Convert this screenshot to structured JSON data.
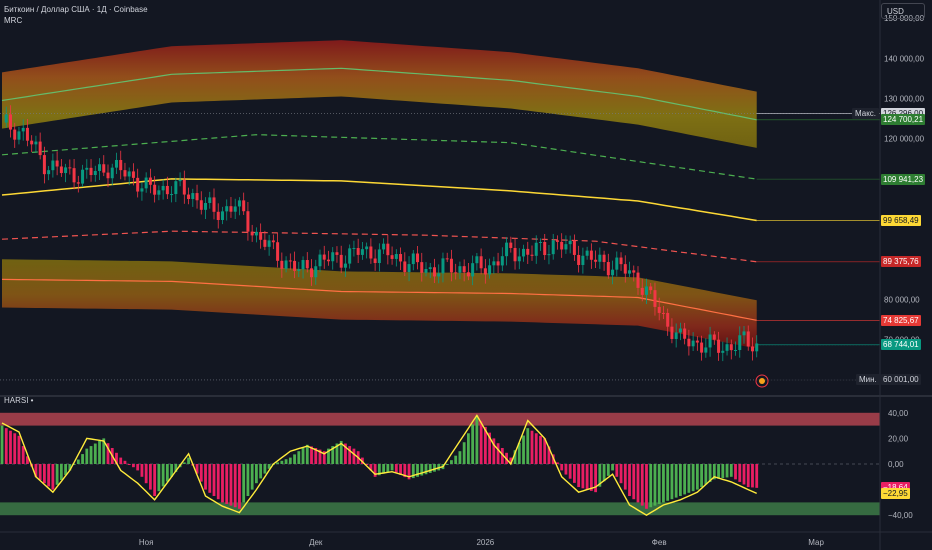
{
  "header": {
    "symbol_line": "Биткоин / Доллар США · 1Д · Coinbase",
    "indicator": "MRC"
  },
  "currency_button": "USD",
  "sub_indicator": "HARSI •",
  "price_axis": {
    "ticks": [
      {
        "v": 150000,
        "label": "150 000,00"
      },
      {
        "v": 140000,
        "label": "140 000,00"
      },
      {
        "v": 130000,
        "label": "130 000,00"
      },
      {
        "v": 120000,
        "label": "120 000,00"
      },
      {
        "v": 80000,
        "label": "80 000,00"
      },
      {
        "v": 70000,
        "label": "70 000,00"
      }
    ],
    "tags": [
      {
        "v": 126296,
        "label": "126 296,00",
        "color": "#131722",
        "bg": "#d1d4dc"
      },
      {
        "v": 124700,
        "label": "124 700,21",
        "color": "#ffffff",
        "bg": "#2e7d32"
      },
      {
        "v": 109941.23,
        "label": "109 941,23",
        "color": "#ffffff",
        "bg": "#2e7d32"
      },
      {
        "v": 99658.49,
        "label": "99 658,49",
        "color": "#131722",
        "bg": "#fdd835"
      },
      {
        "v": 89375.76,
        "label": "89 375,76",
        "color": "#ffffff",
        "bg": "#c62828"
      },
      {
        "v": 74825.67,
        "label": "74 825,67",
        "color": "#ffffff",
        "bg": "#e53935"
      },
      {
        "v": 68744.01,
        "label": "68 744,01",
        "color": "#ffffff",
        "bg": "#089981"
      },
      {
        "v": 60001,
        "label": "60 001,00",
        "color": "#d1d4dc",
        "bg": "#1e222d"
      }
    ],
    "max_label": "Макс.",
    "min_label": "Мин."
  },
  "osc_axis": {
    "ticks": [
      {
        "v": 40,
        "label": "40,00"
      },
      {
        "v": 20,
        "label": "20,00"
      },
      {
        "v": 0,
        "label": "0,00"
      },
      {
        "v": -40,
        "label": "−40,00"
      }
    ],
    "tags": [
      {
        "v": -18.64,
        "label": "−18,64",
        "color": "#ffffff",
        "bg": "#e91e63"
      },
      {
        "v": -22.95,
        "label": "−22,95",
        "color": "#131722",
        "bg": "#fdd835"
      }
    ]
  },
  "time_axis": [
    "Ноя",
    "Дек",
    "2026",
    "Фев",
    "Мар"
  ],
  "colors": {
    "up": "#089981",
    "down": "#f23645",
    "mean": "#fdd835",
    "upper_dash": "#4caf50",
    "lower_dash": "#ef5350",
    "ob_zone": "#b2434f",
    "os_zone": "#3d7a47",
    "osc_bull": "#4caf50",
    "osc_bear": "#e91e63"
  },
  "chart_data": [
    {
      "type": "candlestick",
      "title": "",
      "ylim": [
        57000,
        152000
      ],
      "ticks_x": [
        "Ноя",
        "Дек",
        "2026",
        "Фев",
        "Мар"
      ],
      "close_path": [
        {
          "day": 0,
          "close": 124000
        },
        {
          "day": 5,
          "close": 121500
        },
        {
          "day": 10,
          "close": 114000
        },
        {
          "day": 15,
          "close": 111500
        },
        {
          "day": 20,
          "close": 111000
        },
        {
          "day": 25,
          "close": 113000
        },
        {
          "day": 30,
          "close": 111000
        },
        {
          "day": 35,
          "close": 107000
        },
        {
          "day": 40,
          "close": 108000
        },
        {
          "day": 45,
          "close": 106000
        },
        {
          "day": 50,
          "close": 101500
        },
        {
          "day": 55,
          "close": 103500
        },
        {
          "day": 60,
          "close": 96000
        },
        {
          "day": 65,
          "close": 91000
        },
        {
          "day": 70,
          "close": 87000
        },
        {
          "day": 75,
          "close": 89500
        },
        {
          "day": 80,
          "close": 90500
        },
        {
          "day": 85,
          "close": 92000
        },
        {
          "day": 90,
          "close": 91500
        },
        {
          "day": 95,
          "close": 89500
        },
        {
          "day": 100,
          "close": 87500
        },
        {
          "day": 105,
          "close": 88000
        },
        {
          "day": 110,
          "close": 87500
        },
        {
          "day": 115,
          "close": 88500
        },
        {
          "day": 120,
          "close": 92000
        },
        {
          "day": 125,
          "close": 91500
        },
        {
          "day": 130,
          "close": 94000
        },
        {
          "day": 135,
          "close": 92000
        },
        {
          "day": 140,
          "close": 89500
        },
        {
          "day": 145,
          "close": 88500
        },
        {
          "day": 150,
          "close": 85000
        },
        {
          "day": 155,
          "close": 77000
        },
        {
          "day": 160,
          "close": 70000
        },
        {
          "day": 165,
          "close": 69000
        },
        {
          "day": 170,
          "close": 68000
        },
        {
          "day": 175,
          "close": 69500
        },
        {
          "day": 178,
          "close": 68744
        }
      ],
      "mrc_mean": [
        {
          "day": 0,
          "value": 106000
        },
        {
          "day": 40,
          "value": 110000
        },
        {
          "day": 80,
          "value": 109500
        },
        {
          "day": 120,
          "value": 107000
        },
        {
          "day": 150,
          "value": 104500
        },
        {
          "day": 178,
          "value": 99658
        }
      ],
      "mrc_upper_band": [
        {
          "day": 0,
          "value": 129500
        },
        {
          "day": 40,
          "value": 136000
        },
        {
          "day": 80,
          "value": 137500
        },
        {
          "day": 120,
          "value": 134500
        },
        {
          "day": 150,
          "value": 130500
        },
        {
          "day": 178,
          "value": 124700
        }
      ],
      "mrc_upper_dashed": [
        {
          "day": 0,
          "value": 116000
        },
        {
          "day": 60,
          "value": 121000
        },
        {
          "day": 120,
          "value": 119000
        },
        {
          "day": 178,
          "value": 109941
        }
      ],
      "mrc_lower_dashed": [
        {
          "day": 0,
          "value": 95000
        },
        {
          "day": 40,
          "value": 97000
        },
        {
          "day": 100,
          "value": 96000
        },
        {
          "day": 140,
          "value": 94500
        },
        {
          "day": 178,
          "value": 89376
        }
      ],
      "mrc_lower_band": [
        {
          "day": 0,
          "value": 85000
        },
        {
          "day": 40,
          "value": 84500
        },
        {
          "day": 80,
          "value": 82000
        },
        {
          "day": 120,
          "value": 81500
        },
        {
          "day": 150,
          "value": 80500
        },
        {
          "day": 178,
          "value": 74826
        }
      ],
      "max": 126296,
      "min": 60001
    },
    {
      "type": "bar",
      "title": "",
      "ylim": [
        -50,
        50
      ],
      "overbought_zone": [
        30,
        40
      ],
      "oversold_zone": [
        -30,
        -40
      ],
      "histogram_path": [
        {
          "day": 0,
          "value": 30
        },
        {
          "day": 4,
          "value": 22
        },
        {
          "day": 8,
          "value": -10
        },
        {
          "day": 12,
          "value": -20
        },
        {
          "day": 16,
          "value": -5
        },
        {
          "day": 20,
          "value": 12
        },
        {
          "day": 24,
          "value": 20
        },
        {
          "day": 28,
          "value": 5
        },
        {
          "day": 32,
          "value": -5
        },
        {
          "day": 36,
          "value": -25
        },
        {
          "day": 40,
          "value": -10
        },
        {
          "day": 44,
          "value": 5
        },
        {
          "day": 48,
          "value": -20
        },
        {
          "day": 52,
          "value": -30
        },
        {
          "day": 56,
          "value": -35
        },
        {
          "day": 60,
          "value": -15
        },
        {
          "day": 64,
          "value": 0
        },
        {
          "day": 68,
          "value": 5
        },
        {
          "day": 72,
          "value": 15
        },
        {
          "day": 76,
          "value": 10
        },
        {
          "day": 80,
          "value": 18
        },
        {
          "day": 84,
          "value": 10
        },
        {
          "day": 88,
          "value": -10
        },
        {
          "day": 92,
          "value": -5
        },
        {
          "day": 96,
          "value": -12
        },
        {
          "day": 100,
          "value": -8
        },
        {
          "day": 104,
          "value": -4
        },
        {
          "day": 108,
          "value": 10
        },
        {
          "day": 112,
          "value": 38
        },
        {
          "day": 116,
          "value": 20
        },
        {
          "day": 120,
          "value": 5
        },
        {
          "day": 124,
          "value": 28
        },
        {
          "day": 128,
          "value": 20
        },
        {
          "day": 132,
          "value": -5
        },
        {
          "day": 136,
          "value": -18
        },
        {
          "day": 140,
          "value": -22
        },
        {
          "day": 144,
          "value": -5
        },
        {
          "day": 148,
          "value": -25
        },
        {
          "day": 152,
          "value": -35
        },
        {
          "day": 156,
          "value": -30
        },
        {
          "day": 160,
          "value": -25
        },
        {
          "day": 164,
          "value": -20
        },
        {
          "day": 168,
          "value": -12
        },
        {
          "day": 172,
          "value": -10
        },
        {
          "day": 176,
          "value": -18
        },
        {
          "day": 178,
          "value": -18.64
        }
      ],
      "rsi_line": [
        {
          "day": 0,
          "value": 32
        },
        {
          "day": 4,
          "value": 25
        },
        {
          "day": 8,
          "value": -10
        },
        {
          "day": 12,
          "value": -22
        },
        {
          "day": 16,
          "value": -5
        },
        {
          "day": 20,
          "value": 20
        },
        {
          "day": 24,
          "value": 18
        },
        {
          "day": 28,
          "value": -5
        },
        {
          "day": 32,
          "value": -15
        },
        {
          "day": 36,
          "value": -28
        },
        {
          "day": 40,
          "value": -10
        },
        {
          "day": 44,
          "value": 8
        },
        {
          "day": 48,
          "value": -25
        },
        {
          "day": 52,
          "value": -33
        },
        {
          "day": 56,
          "value": -38
        },
        {
          "day": 60,
          "value": -20
        },
        {
          "day": 64,
          "value": 0
        },
        {
          "day": 68,
          "value": 10
        },
        {
          "day": 72,
          "value": 14
        },
        {
          "day": 76,
          "value": 8
        },
        {
          "day": 80,
          "value": 16
        },
        {
          "day": 84,
          "value": 5
        },
        {
          "day": 88,
          "value": -8
        },
        {
          "day": 92,
          "value": -6
        },
        {
          "day": 96,
          "value": -10
        },
        {
          "day": 100,
          "value": -6
        },
        {
          "day": 104,
          "value": -2
        },
        {
          "day": 108,
          "value": 18
        },
        {
          "day": 112,
          "value": 38
        },
        {
          "day": 116,
          "value": 15
        },
        {
          "day": 120,
          "value": 0
        },
        {
          "day": 124,
          "value": 34
        },
        {
          "day": 128,
          "value": 20
        },
        {
          "day": 132,
          "value": -10
        },
        {
          "day": 136,
          "value": -22
        },
        {
          "day": 140,
          "value": -18
        },
        {
          "day": 144,
          "value": -8
        },
        {
          "day": 148,
          "value": -32
        },
        {
          "day": 152,
          "value": -40
        },
        {
          "day": 156,
          "value": -32
        },
        {
          "day": 160,
          "value": -28
        },
        {
          "day": 164,
          "value": -22
        },
        {
          "day": 168,
          "value": -10
        },
        {
          "day": 172,
          "value": -14
        },
        {
          "day": 176,
          "value": -20
        },
        {
          "day": 178,
          "value": -22.95
        }
      ]
    }
  ]
}
